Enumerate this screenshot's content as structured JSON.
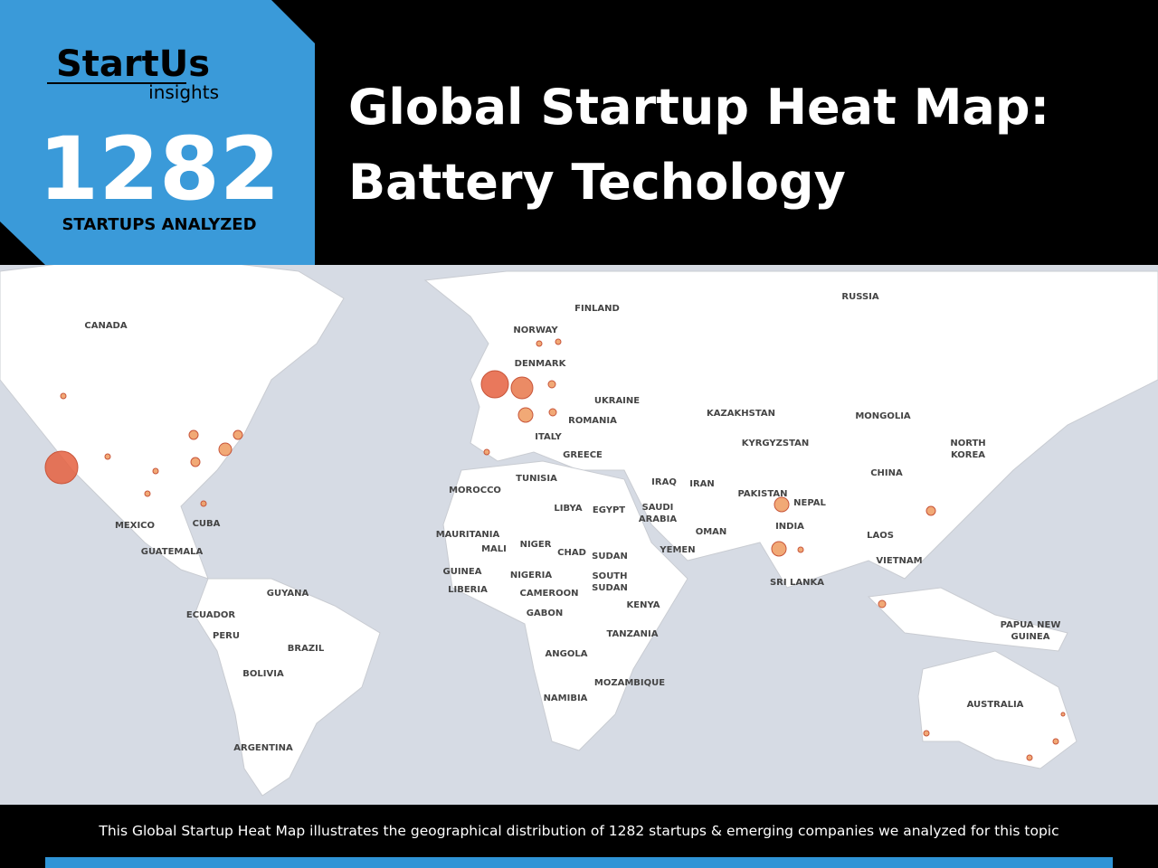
{
  "header": {
    "logo": "StartUs",
    "logo_sub": "insights",
    "count": "1282",
    "count_label": "STARTUPS ANALYZED",
    "title_lines": [
      "Global Startup Heat Map:",
      "Battery Techology"
    ]
  },
  "map": {
    "labels": [
      [
        "CANADA"
      ],
      [
        "RUSSIA"
      ],
      [
        "FINLAND"
      ],
      [
        "NORWAY"
      ],
      [
        "DENMARK"
      ],
      [
        "UKRAINE"
      ],
      [
        "ROMANIA"
      ],
      [
        "ITALY"
      ],
      [
        "GREECE"
      ],
      [
        "KAZAKHSTAN"
      ],
      [
        "MONGOLIA"
      ],
      [
        "KYRGYZSTAN"
      ],
      [
        "NORTH",
        "KOREA"
      ],
      [
        "CHINA"
      ],
      [
        "TUNISIA"
      ],
      [
        "MOROCCO"
      ],
      [
        "IRAQ"
      ],
      [
        "IRAN"
      ],
      [
        "PAKISTAN"
      ],
      [
        "NEPAL"
      ],
      [
        "SAUDI",
        "ARABIA"
      ],
      [
        "EGYPT"
      ],
      [
        "LIBYA"
      ],
      [
        "OMAN"
      ],
      [
        "INDIA"
      ],
      [
        "MEXICO"
      ],
      [
        "CUBA"
      ],
      [
        "MAURITANIA"
      ],
      [
        "LAOS"
      ],
      [
        "YEMEN"
      ],
      [
        "MALI"
      ],
      [
        "NIGER"
      ],
      [
        "CHAD"
      ],
      [
        "SUDAN"
      ],
      [
        "GUATEMALA"
      ],
      [
        "VIETNAM"
      ],
      [
        "GUINEA"
      ],
      [
        "NIGERIA"
      ],
      [
        "SOUTH",
        "SUDAN"
      ],
      [
        "SRI LANKA"
      ],
      [
        "LIBERIA"
      ],
      [
        "CAMEROON"
      ],
      [
        "GUYANA"
      ],
      [
        "KENYA"
      ],
      [
        "ECUADOR"
      ],
      [
        "GABON"
      ],
      [
        "PAPUA NEW",
        "GUINEA"
      ],
      [
        "TANZANIA"
      ],
      [
        "PERU"
      ],
      [
        "BRAZIL"
      ],
      [
        "ANGOLA"
      ],
      [
        "BOLIVIA"
      ],
      [
        "MOZAMBIQUE"
      ],
      [
        "NAMIBIA"
      ],
      [
        "AUSTRALIA"
      ],
      [
        "ARGENTINA"
      ]
    ]
  },
  "footer": {
    "text": "This Global Startup Heat Map illustrates the geographical distribution of 1282 startups & emerging companies we analyzed for this topic"
  }
}
